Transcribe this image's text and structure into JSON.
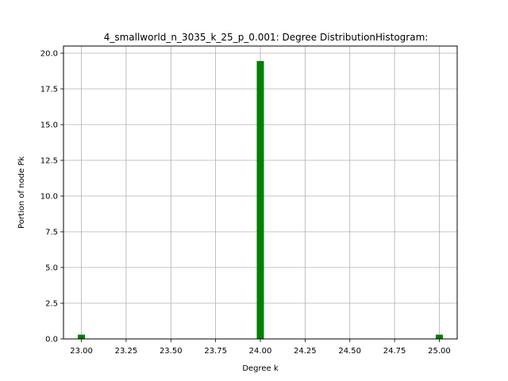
{
  "chart_data": {
    "type": "bar",
    "title": "4_smallworld_n_3035_k_25_p_0.001: Degree DistributionHistogram:",
    "xlabel": "Degree k",
    "ylabel": "Portion of node Pk",
    "xlim": [
      22.9,
      25.1
    ],
    "ylim": [
      0,
      20.5
    ],
    "grid": true,
    "x": [
      23.0,
      24.0,
      25.0
    ],
    "values": [
      0.3,
      19.45,
      0.3
    ],
    "bar_width": 0.04,
    "xticks": [
      23.0,
      23.25,
      23.5,
      23.75,
      24.0,
      24.25,
      24.5,
      24.75,
      25.0
    ],
    "xtick_labels": [
      "23.00",
      "23.25",
      "23.50",
      "23.75",
      "24.00",
      "24.25",
      "24.50",
      "24.75",
      "25.00"
    ],
    "yticks": [
      0,
      2.5,
      5,
      7.5,
      10,
      12.5,
      15,
      17.5,
      20
    ],
    "ytick_labels": [
      "0.0",
      "2.5",
      "5.0",
      "7.5",
      "10.0",
      "12.5",
      "15.0",
      "17.5",
      "20.0"
    ],
    "colors": {
      "bar": "#008000",
      "grid": "#b0b0b0",
      "axis": "#000000"
    }
  }
}
